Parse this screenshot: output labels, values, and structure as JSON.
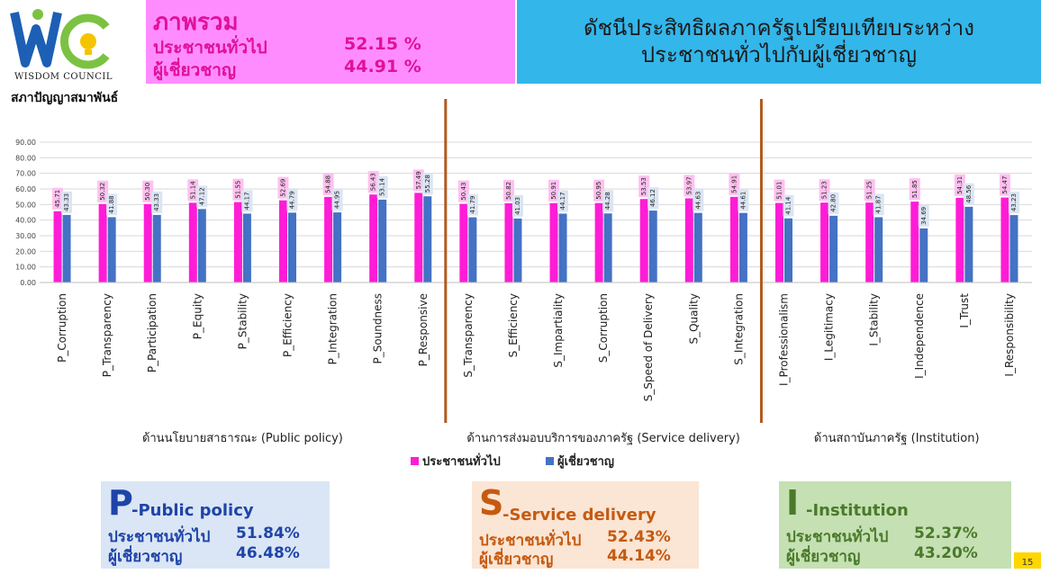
{
  "logo": {
    "text_line1": "WISDOM COUNCIL",
    "text_line2": "สภาปัญญาสมาพันธ์",
    "colors": {
      "w": "#1c5fb5",
      "c": "#7cc242",
      "bulb": "#f5c400"
    }
  },
  "overview": {
    "title": "ภาพรวม",
    "rows": [
      {
        "label": "ประชาชนทั่วไป",
        "value": "52.15 %"
      },
      {
        "label": "ผู้เชี่ยวชาญ",
        "value": "44.91 %"
      }
    ]
  },
  "heading": {
    "line1": "ดัชนีประสิทธิผลภาครัฐเปรียบเทียบระหว่าง",
    "line2": "ประชาชนทั่วไปกับผู้เชี่ยวชาญ"
  },
  "chart_data": {
    "type": "bar",
    "ylim": [
      0,
      90
    ],
    "yticks": [
      "0.00",
      "10.00",
      "20.00",
      "30.00",
      "40.00",
      "50.00",
      "60.00",
      "70.00",
      "80.00",
      "90.00"
    ],
    "categories": [
      "P_Corruption",
      "P_Transparency",
      "P_Participation",
      "P_Equity",
      "P_Stability",
      "P_Efficiency",
      "P_Integration",
      "P_Soundness",
      "P_Responsive",
      "S_Transparency",
      "S_Efficiency",
      "S_Impartiality",
      "S_Corruption",
      "S_Speed of Delivery",
      "S_Quality",
      "S_Integration",
      "I_Professionalism",
      "I_Legitimacy",
      "I_Stability",
      "I_Independence",
      "I_Trust",
      "I_Responsibility"
    ],
    "series": [
      {
        "name": "ประชาชนทั่วไป",
        "color": "#ff1cd6",
        "label_bg": "#ffc0ef",
        "values": [
          45.71,
          50.32,
          50.3,
          51.14,
          51.55,
          52.69,
          54.88,
          56.43,
          57.49,
          50.43,
          50.82,
          50.91,
          50.95,
          53.53,
          53.97,
          54.91,
          51.01,
          51.23,
          51.25,
          51.85,
          54.31,
          54.47
        ],
        "labels": [
          "45.71",
          "50.32",
          "50.30",
          "51.14",
          "51.55",
          "52.69",
          "54.88",
          "56.43",
          "57.49",
          "50.43",
          "50.82",
          "50.91",
          "50.95",
          "53.53",
          "53.97",
          "54.91",
          "51.01",
          "51.23",
          "51.25",
          "51.85",
          "54.31",
          "54.47"
        ]
      },
      {
        "name": "ผู้เชี่ยวชาญ",
        "color": "#4472c4",
        "label_bg": "#dbe5f3",
        "values": [
          43.33,
          41.88,
          43.33,
          47.12,
          44.17,
          44.79,
          44.95,
          53.14,
          55.28,
          41.79,
          41.03,
          44.17,
          44.28,
          46.12,
          44.63,
          44.61,
          41.14,
          42.8,
          41.87,
          34.69,
          48.56,
          43.23
        ],
        "labels": [
          "43.33",
          "41.88",
          "43.33",
          "47.12",
          "44.17",
          "44.79",
          "44.95",
          "53.14",
          "55.28",
          "41.79",
          "41.03",
          "44.17",
          "44.28",
          "46.12",
          "44.63",
          "44.61",
          "41.14",
          "42.80",
          "41.87",
          "34.69",
          "48.56",
          "43.23"
        ]
      }
    ],
    "groups": [
      {
        "label": "ด้านนโยบายสาธารณะ (Public policy)",
        "start": 0,
        "end": 8
      },
      {
        "label": "ด้านการส่งมอบบริการของภาครัฐ (Service delivery)",
        "start": 9,
        "end": 15
      },
      {
        "label": "ด้านสถาบันภาครัฐ (Institution)",
        "start": 16,
        "end": 21
      }
    ],
    "separator_color": "#b35a1f",
    "grid": true,
    "legend": "bottom-center"
  },
  "boxes": {
    "p": {
      "letter": "P",
      "label": "-Public policy",
      "rows": [
        {
          "label": "ประชาชนทั่วไป",
          "value": "51.84%"
        },
        {
          "label": "ผู้เชี่ยวชาญ",
          "value": "46.48%"
        }
      ]
    },
    "s": {
      "letter": "S",
      "label": "-Service delivery",
      "rows": [
        {
          "label": "ประชาชนทั่วไป",
          "value": "52.43%"
        },
        {
          "label": "ผู้เชี่ยวชาญ",
          "value": "44.14%"
        }
      ]
    },
    "i": {
      "letter": "I",
      "label": "-Institution",
      "rows": [
        {
          "label": "ประชาชนทั่วไป",
          "value": "52.37%"
        },
        {
          "label": "ผู้เชี่ยวชาญ",
          "value": "43.20%"
        }
      ]
    }
  },
  "page_number": "15"
}
